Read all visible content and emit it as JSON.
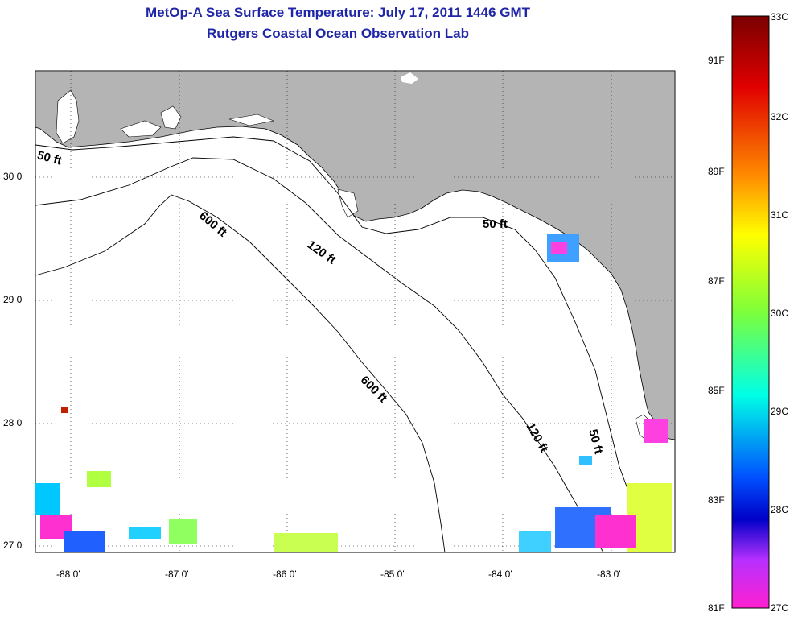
{
  "title_line1": "MetOp-A Sea Surface Temperature:  July 17, 2011 1446 GMT",
  "title_line2": "Rutgers Coastal Ocean Observation Lab",
  "lat_labels": [
    "30 0'",
    "29 0'",
    "28 0'",
    "27 0'"
  ],
  "lon_labels": [
    "-88 0'",
    "-87 0'",
    "-86 0'",
    "-85 0'",
    "-84 0'",
    "-83 0'"
  ],
  "contours": [
    "50 ft",
    "120 ft",
    "600 ft"
  ],
  "colorbar": {
    "fahrenheit": [
      "91F",
      "89F",
      "87F",
      "85F",
      "83F",
      "81F"
    ],
    "celsius": [
      "33C",
      "32C",
      "31C",
      "30C",
      "29C",
      "28C",
      "27C"
    ],
    "stops": [
      "#7a0000",
      "#e00000",
      "#ff8c00",
      "#ffff00",
      "#7dff3a",
      "#00ffe6",
      "#0050ff",
      "#0000c8",
      "#b830ff",
      "#ff20d0"
    ]
  },
  "colors": {
    "land": "#b4b4b4",
    "title": "#1f26a8"
  }
}
